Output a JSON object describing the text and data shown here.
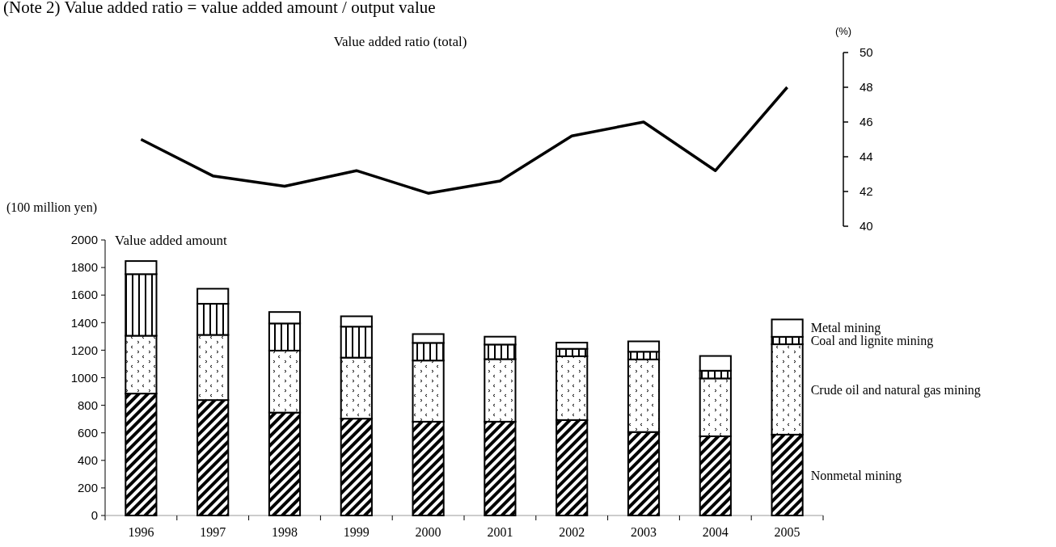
{
  "chart_data": [
    {
      "type": "line",
      "ylabel": "(%)",
      "categories": [
        null,
        null,
        null,
        null,
        null,
        null,
        null,
        null,
        null,
        null
      ],
      "series": [
        {
          "name": "Value added ratio (total)",
          "color": "#000000",
          "values": [
            45.0,
            42.9,
            42.3,
            43.2,
            41.9,
            42.6,
            45.2,
            46.0,
            43.2,
            48.0
          ]
        }
      ],
      "ylim": [
        40,
        50
      ],
      "yticks": [
        40,
        42,
        44,
        46,
        48,
        50
      ],
      "marker": "none",
      "line_style": "solid"
    },
    {
      "type": "bar",
      "stacked": true,
      "annotations": [
        "(Note 2)    Value added ratio = value added amount / output value",
        "Value added amount"
      ],
      "ylabel": "(100 million yen)",
      "categories": [
        "1996",
        "1997",
        "1998",
        "1999",
        "2000",
        "2001",
        "2002",
        "2003",
        "2004",
        "2005"
      ],
      "series": [
        {
          "name": "Nonmetal mining",
          "color": "#000000",
          "values": [
            885,
            838,
            747,
            703,
            681,
            681,
            693,
            606,
            575,
            587
          ]
        },
        {
          "name": "Crude oil and natural gas mining",
          "color": "#000000",
          "values": [
            420,
            473,
            450,
            443,
            444,
            454,
            463,
            527,
            420,
            656
          ]
        },
        {
          "name": "Coal and lignite mining",
          "color": "#000000",
          "values": [
            447,
            226,
            197,
            225,
            128,
            106,
            54,
            56,
            56,
            54
          ]
        },
        {
          "name": "Metal mining",
          "color": "#000000",
          "values": [
            95,
            109,
            83,
            75,
            64,
            57,
            45,
            75,
            107,
            126
          ]
        }
      ],
      "ylim": [
        0,
        2000
      ],
      "yticks": [
        0,
        200,
        400,
        600,
        800,
        1000,
        1200,
        1400,
        1600,
        1800,
        2000
      ]
    }
  ]
}
